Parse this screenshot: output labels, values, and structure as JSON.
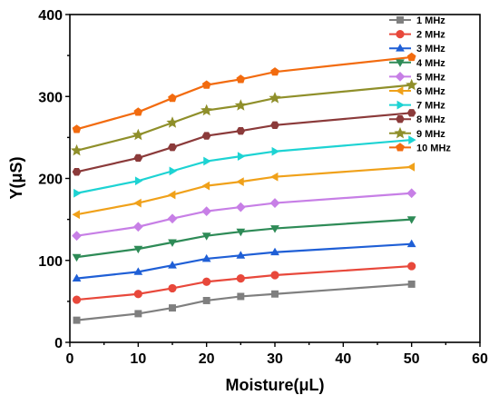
{
  "chart_data": {
    "type": "line",
    "title": "",
    "xlabel": "Moisture(μL)",
    "ylabel": "Y(μS)",
    "xlim": [
      0,
      60
    ],
    "ylim": [
      0,
      400
    ],
    "xticks": [
      0,
      10,
      20,
      30,
      40,
      50,
      60
    ],
    "yticks": [
      0,
      100,
      200,
      300,
      400
    ],
    "grid": false,
    "legend_position": "top-right",
    "x": [
      1,
      10,
      15,
      20,
      25,
      30,
      50
    ],
    "series": [
      {
        "name": "1 MHz",
        "color": "#7f7f7f",
        "marker": "square",
        "values": [
          27,
          35,
          42,
          51,
          56,
          59,
          71
        ]
      },
      {
        "name": "2 MHz",
        "color": "#e8483b",
        "marker": "circle",
        "values": [
          52,
          59,
          66,
          74,
          78,
          82,
          93
        ]
      },
      {
        "name": "3 MHz",
        "color": "#1f5fd6",
        "marker": "triangle-up",
        "values": [
          78,
          86,
          94,
          102,
          106,
          110,
          120
        ]
      },
      {
        "name": "4 MHz",
        "color": "#2e8b57",
        "marker": "triangle-down",
        "values": [
          104,
          114,
          122,
          130,
          135,
          139,
          150
        ]
      },
      {
        "name": "5 MHz",
        "color": "#c77fe6",
        "marker": "diamond",
        "values": [
          130,
          141,
          151,
          160,
          165,
          170,
          182
        ]
      },
      {
        "name": "6 MHz",
        "color": "#f0a11a",
        "marker": "triangle-left",
        "values": [
          156,
          170,
          180,
          191,
          196,
          202,
          214
        ]
      },
      {
        "name": "7 MHz",
        "color": "#1dd3d3",
        "marker": "triangle-right",
        "values": [
          182,
          197,
          209,
          221,
          227,
          233,
          247
        ]
      },
      {
        "name": "8 MHz",
        "color": "#8b3a3a",
        "marker": "hexagon",
        "values": [
          208,
          225,
          238,
          252,
          258,
          265,
          280
        ]
      },
      {
        "name": "9 MHz",
        "color": "#8f8f2a",
        "marker": "star",
        "values": [
          234,
          253,
          268,
          283,
          289,
          298,
          314
        ]
      },
      {
        "name": "10 MHz",
        "color": "#f26b0f",
        "marker": "pentagon",
        "values": [
          260,
          281,
          298,
          314,
          321,
          330,
          348
        ]
      }
    ]
  }
}
